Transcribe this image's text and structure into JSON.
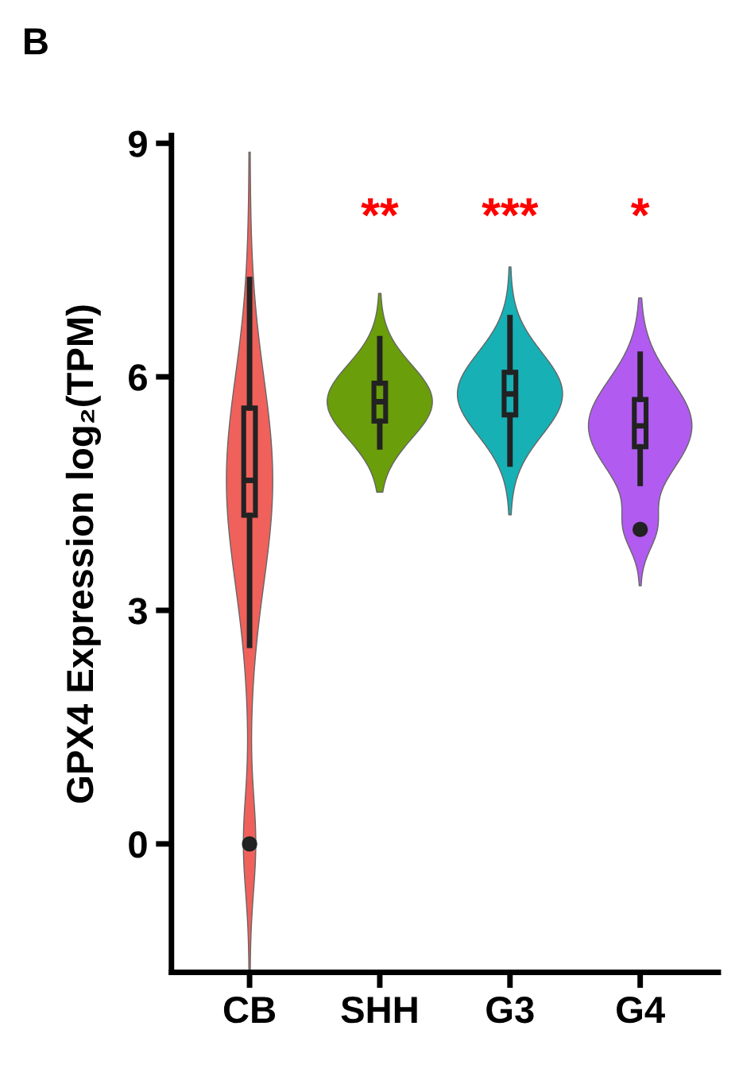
{
  "chart_data": {
    "type": "box",
    "ylabel": "GPX4 Expression log₂(TPM)",
    "categories": [
      "CB",
      "SHH",
      "G3",
      "G4"
    ],
    "colors": [
      "#f0615b",
      "#6a9e0a",
      "#17b0b5",
      "#b15bf0"
    ],
    "boxes": [
      {
        "low": 2.55,
        "q1": 4.22,
        "median": 4.67,
        "q3": 5.6,
        "high": 7.25,
        "outliers": [
          0
        ]
      },
      {
        "low": 5.1,
        "q1": 5.43,
        "median": 5.68,
        "q3": 5.92,
        "high": 6.49
      },
      {
        "low": 4.88,
        "q1": 5.51,
        "median": 5.78,
        "q3": 6.06,
        "high": 6.76
      },
      {
        "low": 4.63,
        "q1": 5.1,
        "median": 5.37,
        "q3": 5.71,
        "high": 6.29,
        "outliers": [
          4.04
        ]
      }
    ],
    "ylim": [
      -1.65,
      9.1
    ],
    "yticks": [
      0,
      3,
      6,
      9
    ],
    "grid": false,
    "legend": false,
    "annotations": [
      "B",
      "**",
      "***",
      "*"
    ]
  }
}
